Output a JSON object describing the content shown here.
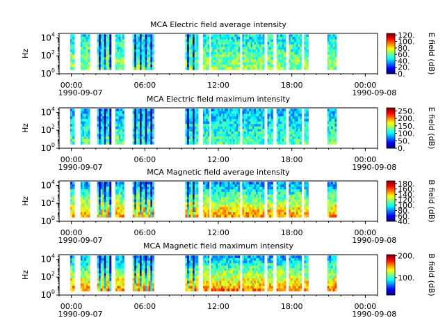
{
  "chart_data": [
    {
      "type": "heatmap",
      "title": "MCA  Electric field average intensity",
      "ylabel": "Hz",
      "colorbar_label": "E field (dB)",
      "colorbar_ticks": [
        "0.",
        "20.",
        "40.",
        "60.",
        "80.",
        "100.",
        "120."
      ],
      "colorbar_range": [
        0,
        125
      ],
      "y_ticks": [
        {
          "base": "10",
          "exp": "0"
        },
        {
          "base": "10",
          "exp": "2"
        },
        {
          "base": "10",
          "exp": "4"
        }
      ],
      "y_range_log10": [
        0,
        4.5
      ],
      "x_tick_labels": [
        "00:00",
        "06:00",
        "12:00",
        "18:00",
        "00:00"
      ],
      "x_tick_hours": [
        0,
        6,
        12,
        18,
        24
      ],
      "x_range_hours": [
        -1,
        25
      ],
      "date_start": "1990-09-07",
      "date_end": "1990-09-08",
      "level": 0.45,
      "segments_hours": [
        [
          -0.1,
          0.25
        ],
        [
          0.75,
          1.5
        ],
        [
          2.1,
          3.25
        ],
        [
          3.6,
          4.3
        ],
        [
          5.0,
          6.75
        ],
        [
          9.3,
          10.35
        ],
        [
          10.75,
          11.25
        ],
        [
          11.4,
          13.75
        ],
        [
          13.95,
          15.75
        ],
        [
          16.0,
          16.45
        ],
        [
          16.75,
          17.5
        ],
        [
          17.75,
          18.8
        ],
        [
          19.0,
          19.35
        ],
        [
          20.9,
          21.65
        ]
      ]
    },
    {
      "type": "heatmap",
      "title": "MCA  Electric field maximum intensity",
      "ylabel": "Hz",
      "colorbar_label": "E field (dB)",
      "colorbar_ticks": [
        "0.",
        "50.",
        "100.",
        "150.",
        "200.",
        "250."
      ],
      "colorbar_range": [
        0,
        270
      ],
      "y_ticks": [
        {
          "base": "10",
          "exp": "0"
        },
        {
          "base": "10",
          "exp": "2"
        },
        {
          "base": "10",
          "exp": "4"
        }
      ],
      "y_range_log10": [
        0,
        4.5
      ],
      "x_tick_labels": [
        "00:00",
        "06:00",
        "12:00",
        "18:00",
        "00:00"
      ],
      "x_tick_hours": [
        0,
        6,
        12,
        18,
        24
      ],
      "x_range_hours": [
        -1,
        25
      ],
      "date_start": "1990-09-07",
      "date_end": "1990-09-08",
      "level": 0.38,
      "segments_hours": [
        [
          -0.1,
          0.25
        ],
        [
          0.75,
          1.5
        ],
        [
          2.1,
          3.25
        ],
        [
          3.6,
          4.3
        ],
        [
          5.0,
          6.75
        ],
        [
          9.3,
          10.35
        ],
        [
          10.75,
          11.25
        ],
        [
          11.4,
          13.75
        ],
        [
          13.95,
          15.75
        ],
        [
          16.0,
          16.45
        ],
        [
          16.75,
          17.5
        ],
        [
          17.75,
          18.8
        ],
        [
          19.0,
          19.35
        ],
        [
          20.9,
          21.65
        ]
      ]
    },
    {
      "type": "heatmap",
      "title": "MCA  Magnetic field average intensity",
      "ylabel": "Hz",
      "colorbar_label": "B field (dB)",
      "colorbar_ticks": [
        "40.",
        "60.",
        "80.",
        "100.",
        "120.",
        "140.",
        "160.",
        "180."
      ],
      "colorbar_range": [
        40,
        190
      ],
      "y_ticks": [
        {
          "base": "10",
          "exp": "0"
        },
        {
          "base": "10",
          "exp": "2"
        },
        {
          "base": "10",
          "exp": "4"
        }
      ],
      "y_range_log10": [
        0,
        4.5
      ],
      "x_tick_labels": [
        "00:00",
        "06:00",
        "12:00",
        "18:00",
        "00:00"
      ],
      "x_tick_hours": [
        0,
        6,
        12,
        18,
        24
      ],
      "x_range_hours": [
        -1,
        25
      ],
      "date_start": "1990-09-07",
      "date_end": "1990-09-08",
      "level": 0.5,
      "segments_hours": [
        [
          -0.1,
          0.25
        ],
        [
          0.75,
          1.5
        ],
        [
          2.1,
          3.25
        ],
        [
          3.6,
          4.3
        ],
        [
          5.0,
          6.75
        ],
        [
          9.3,
          10.35
        ],
        [
          10.75,
          11.25
        ],
        [
          11.4,
          13.75
        ],
        [
          13.95,
          15.75
        ],
        [
          16.0,
          16.45
        ],
        [
          16.75,
          17.5
        ],
        [
          17.75,
          18.8
        ],
        [
          19.0,
          19.35
        ],
        [
          20.9,
          21.65
        ]
      ]
    },
    {
      "type": "heatmap",
      "title": "MCA  Magnetic field maximum intensity",
      "ylabel": "Hz",
      "colorbar_label": "B field (dB)",
      "colorbar_ticks": [
        "100.",
        "200."
      ],
      "colorbar_range": [
        20,
        205
      ],
      "y_ticks": [
        {
          "base": "10",
          "exp": "0"
        },
        {
          "base": "10",
          "exp": "2"
        },
        {
          "base": "10",
          "exp": "4"
        }
      ],
      "y_range_log10": [
        0,
        4.5
      ],
      "x_tick_labels": [
        "00:00",
        "06:00",
        "12:00",
        "18:00",
        "00:00"
      ],
      "x_tick_hours": [
        0,
        6,
        12,
        18,
        24
      ],
      "x_range_hours": [
        -1,
        25
      ],
      "date_start": "1990-09-07",
      "date_end": "1990-09-08",
      "level": 0.52,
      "segments_hours": [
        [
          -0.1,
          0.25
        ],
        [
          0.75,
          1.5
        ],
        [
          2.1,
          3.25
        ],
        [
          3.6,
          4.3
        ],
        [
          5.0,
          6.75
        ],
        [
          9.3,
          10.35
        ],
        [
          10.75,
          11.25
        ],
        [
          11.4,
          13.75
        ],
        [
          13.95,
          15.75
        ],
        [
          16.0,
          16.45
        ],
        [
          16.75,
          17.5
        ],
        [
          17.75,
          18.8
        ],
        [
          19.0,
          19.35
        ],
        [
          20.9,
          21.65
        ]
      ]
    }
  ]
}
